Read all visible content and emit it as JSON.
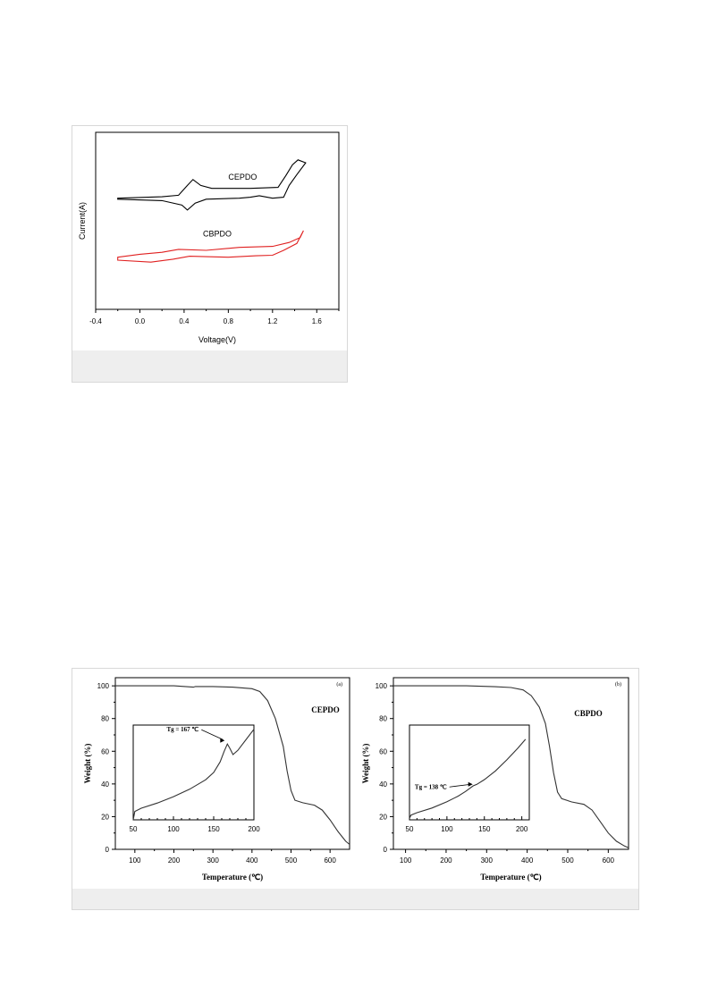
{
  "figure1": {
    "chart_data": {
      "type": "line",
      "xlabel": "Voltage(V)",
      "ylabel": "Current(A)",
      "xlim": [
        -0.4,
        1.8
      ],
      "xticks": [
        "-0.4",
        "0.0",
        "0.4",
        "0.8",
        "1.2",
        "1.6"
      ],
      "yticks": [],
      "grid": false,
      "series": [
        {
          "name": "CEPDO",
          "color": "#000000",
          "forward": [
            [
              -0.2,
              1.3
            ],
            [
              0.2,
              1.45
            ],
            [
              0.35,
              1.6
            ],
            [
              0.43,
              2.6
            ],
            [
              0.48,
              3.2
            ],
            [
              0.55,
              2.6
            ],
            [
              0.65,
              2.3
            ],
            [
              1.0,
              2.3
            ],
            [
              1.25,
              2.4
            ],
            [
              1.32,
              3.6
            ],
            [
              1.38,
              4.7
            ],
            [
              1.43,
              5.2
            ],
            [
              1.5,
              4.9
            ]
          ],
          "reverse": [
            [
              1.5,
              4.9
            ],
            [
              1.42,
              3.7
            ],
            [
              1.35,
              2.6
            ],
            [
              1.3,
              1.4
            ],
            [
              1.2,
              1.3
            ],
            [
              1.08,
              1.55
            ],
            [
              1.0,
              1.4
            ],
            [
              0.9,
              1.3
            ],
            [
              0.6,
              1.2
            ],
            [
              0.5,
              0.8
            ],
            [
              0.43,
              0.1
            ],
            [
              0.38,
              0.6
            ],
            [
              0.2,
              1.05
            ],
            [
              -0.2,
              1.2
            ]
          ],
          "label": "CEPDO",
          "label_at": [
            0.93,
            3.2
          ]
        },
        {
          "name": "CBPDO",
          "color": "#e02020",
          "forward": [
            [
              -0.2,
              -4.7
            ],
            [
              0.0,
              -4.4
            ],
            [
              0.2,
              -4.2
            ],
            [
              0.35,
              -3.9
            ],
            [
              0.6,
              -4.0
            ],
            [
              0.9,
              -3.7
            ],
            [
              1.2,
              -3.6
            ],
            [
              1.35,
              -3.2
            ],
            [
              1.45,
              -2.7
            ],
            [
              1.48,
              -2.0
            ]
          ],
          "reverse": [
            [
              1.48,
              -2.0
            ],
            [
              1.42,
              -3.3
            ],
            [
              1.3,
              -4.0
            ],
            [
              1.2,
              -4.5
            ],
            [
              1.05,
              -4.55
            ],
            [
              0.8,
              -4.7
            ],
            [
              0.6,
              -4.65
            ],
            [
              0.45,
              -4.6
            ],
            [
              0.3,
              -4.9
            ],
            [
              0.1,
              -5.2
            ],
            [
              -0.2,
              -5.0
            ]
          ],
          "label": "CBPDO",
          "label_at": [
            0.7,
            -2.6
          ]
        }
      ]
    }
  },
  "figure2": {
    "chart_data": [
      {
        "type": "line",
        "panel_label": "(a)",
        "xlabel": "Temperature (℃)",
        "ylabel": "Weight (%)",
        "xlim": [
          50,
          650
        ],
        "ylim": [
          0,
          105
        ],
        "xticks": [
          "100",
          "200",
          "300",
          "400",
          "500",
          "600"
        ],
        "yticks": [
          "0",
          "20",
          "40",
          "60",
          "80",
          "100"
        ],
        "series": [
          {
            "name": "CEPDO",
            "points": [
              [
                50,
                100
              ],
              [
                200,
                100
              ],
              [
                250,
                99.2
              ],
              [
                255,
                99.6
              ],
              [
                300,
                99.6
              ],
              [
                350,
                99.2
              ],
              [
                400,
                98.3
              ],
              [
                420,
                96.5
              ],
              [
                440,
                91
              ],
              [
                460,
                80
              ],
              [
                480,
                63
              ],
              [
                490,
                48
              ],
              [
                500,
                36
              ],
              [
                510,
                30
              ],
              [
                530,
                28.5
              ],
              [
                560,
                27
              ],
              [
                580,
                24
              ],
              [
                600,
                18
              ],
              [
                620,
                11
              ],
              [
                640,
                5
              ],
              [
                650,
                3
              ]
            ]
          }
        ],
        "label": "CEPDO",
        "inset": {
          "xlim": [
            50,
            200
          ],
          "ylim": [
            30,
            75
          ],
          "xticks": [
            "50",
            "100",
            "150",
            "200"
          ],
          "annotation": "Tg = 167 ℃",
          "annotation_at": [
            167,
            66
          ],
          "curve": [
            [
              50,
              30
            ],
            [
              52,
              34
            ],
            [
              60,
              35.5
            ],
            [
              80,
              38
            ],
            [
              100,
              41
            ],
            [
              120,
              44.5
            ],
            [
              140,
              49
            ],
            [
              150,
              52.5
            ],
            [
              158,
              57.5
            ],
            [
              163,
              62.5
            ],
            [
              167,
              66
            ],
            [
              170,
              64
            ],
            [
              174,
              61
            ],
            [
              180,
              63
            ],
            [
              190,
              68
            ],
            [
              200,
              73
            ]
          ]
        }
      },
      {
        "type": "line",
        "panel_label": "(b)",
        "xlabel": "Temperature (℃)",
        "ylabel": "Weight (%)",
        "xlim": [
          70,
          650
        ],
        "ylim": [
          0,
          105
        ],
        "xticks": [
          "100",
          "200",
          "300",
          "400",
          "500",
          "600"
        ],
        "yticks": [
          "0",
          "20",
          "40",
          "60",
          "80",
          "100"
        ],
        "series": [
          {
            "name": "CBPDO",
            "points": [
              [
                70,
                100
              ],
              [
                250,
                100
              ],
              [
                320,
                99.5
              ],
              [
                360,
                99
              ],
              [
                390,
                97.5
              ],
              [
                410,
                94
              ],
              [
                430,
                87
              ],
              [
                445,
                77
              ],
              [
                455,
                63
              ],
              [
                465,
                47
              ],
              [
                475,
                35
              ],
              [
                485,
                31
              ],
              [
                510,
                29
              ],
              [
                540,
                27.5
              ],
              [
                560,
                24
              ],
              [
                580,
                17
              ],
              [
                600,
                10
              ],
              [
                620,
                5
              ],
              [
                640,
                2
              ],
              [
                650,
                1
              ]
            ]
          }
        ],
        "label": "CBPDO",
        "inset": {
          "xlim": [
            50,
            210
          ],
          "ylim": [
            30,
            90
          ],
          "xticks": [
            "50",
            "100",
            "150",
            "200"
          ],
          "annotation": "Tg = 138 ℃",
          "annotation_at": [
            138,
            52.5
          ],
          "curve": [
            [
              50,
              31
            ],
            [
              52,
              33
            ],
            [
              60,
              34.5
            ],
            [
              80,
              37.5
            ],
            [
              100,
              41.5
            ],
            [
              115,
              45
            ],
            [
              125,
              48
            ],
            [
              135,
              51.5
            ],
            [
              140,
              52.5
            ],
            [
              150,
              55.5
            ],
            [
              165,
              61
            ],
            [
              180,
              68
            ],
            [
              195,
              75.5
            ],
            [
              205,
              81
            ]
          ]
        }
      }
    ]
  }
}
